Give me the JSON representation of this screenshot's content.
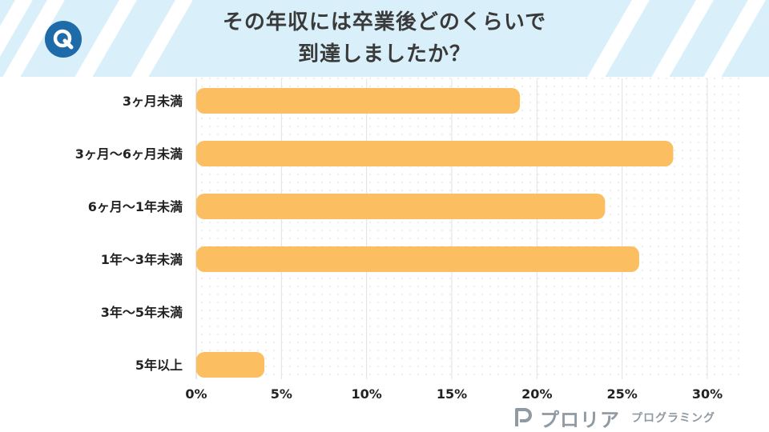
{
  "header": {
    "title_line1": "その年収には卒業後どのくらいで",
    "title_line2": "到達しましたか？",
    "badge_letter": "Q",
    "badge_color": "#1f6aa8",
    "background_color": "#d9effa"
  },
  "chart_data": {
    "type": "bar",
    "orientation": "horizontal",
    "categories": [
      "3ヶ月未満",
      "3ヶ月～6ヶ月未満",
      "6ヶ月～1年未満",
      "1年～3年未満",
      "3年～5年未満",
      "5年以上"
    ],
    "values": [
      19,
      28,
      24,
      26,
      0,
      4
    ],
    "unit": "%",
    "xlim": [
      0,
      30
    ],
    "xticks": [
      "0%",
      "5%",
      "10%",
      "15%",
      "20%",
      "25%",
      "30%"
    ],
    "grid": "vertical",
    "bar_color": "#fbbf62",
    "title": "",
    "xlabel": "",
    "ylabel": ""
  },
  "brand": {
    "name": "プロリア",
    "subtitle": "プログラミング",
    "color": "#8f9aa3"
  }
}
